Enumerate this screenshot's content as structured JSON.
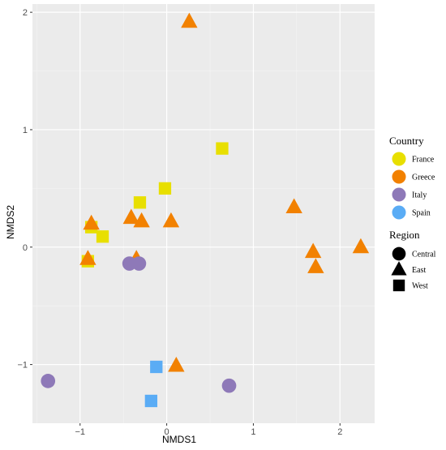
{
  "chart_data": {
    "type": "scatter",
    "xlabel": "NMDS1",
    "ylabel": "NMDS2",
    "xlim": [
      -1.55,
      2.4
    ],
    "ylim": [
      -1.5,
      2.07
    ],
    "x_ticks": [
      -1,
      0,
      1,
      2
    ],
    "y_ticks": [
      -1,
      0,
      1,
      2
    ],
    "x_tick_labels": [
      "−1",
      "0",
      "1",
      "2"
    ],
    "y_tick_labels": [
      "−1",
      "0",
      "1",
      "2"
    ],
    "grid": true,
    "legend_placement": "right",
    "color_legend": {
      "title": "Country",
      "items": [
        {
          "label": "France",
          "color": "#E8DF00"
        },
        {
          "label": "Greece",
          "color": "#F28100"
        },
        {
          "label": "Italy",
          "color": "#8E79B8"
        },
        {
          "label": "Spain",
          "color": "#5AACF5"
        }
      ]
    },
    "shape_legend": {
      "title": "Region",
      "items": [
        {
          "label": "Central",
          "shape": "circle"
        },
        {
          "label": "East",
          "shape": "triangle"
        },
        {
          "label": "West",
          "shape": "square"
        }
      ]
    },
    "points": [
      {
        "x": -0.87,
        "y": 0.17,
        "country": "France",
        "region": "West"
      },
      {
        "x": -0.74,
        "y": 0.09,
        "country": "France",
        "region": "West"
      },
      {
        "x": -0.91,
        "y": -0.12,
        "country": "France",
        "region": "West"
      },
      {
        "x": -0.31,
        "y": 0.38,
        "country": "France",
        "region": "West"
      },
      {
        "x": -0.02,
        "y": 0.5,
        "country": "France",
        "region": "West"
      },
      {
        "x": 0.64,
        "y": 0.84,
        "country": "France",
        "region": "West"
      },
      {
        "x": -0.87,
        "y": 0.2,
        "country": "Greece",
        "region": "East"
      },
      {
        "x": -0.91,
        "y": -0.1,
        "country": "Greece",
        "region": "East"
      },
      {
        "x": -0.41,
        "y": 0.25,
        "country": "Greece",
        "region": "East"
      },
      {
        "x": -0.29,
        "y": 0.22,
        "country": "Greece",
        "region": "East"
      },
      {
        "x": -0.35,
        "y": -0.1,
        "country": "Greece",
        "region": "East"
      },
      {
        "x": 0.05,
        "y": 0.22,
        "country": "Greece",
        "region": "East"
      },
      {
        "x": 0.26,
        "y": 1.92,
        "country": "Greece",
        "region": "East"
      },
      {
        "x": 0.11,
        "y": -1.01,
        "country": "Greece",
        "region": "East"
      },
      {
        "x": 1.47,
        "y": 0.34,
        "country": "Greece",
        "region": "East"
      },
      {
        "x": 1.69,
        "y": -0.04,
        "country": "Greece",
        "region": "East"
      },
      {
        "x": 1.72,
        "y": -0.17,
        "country": "Greece",
        "region": "East"
      },
      {
        "x": 2.24,
        "y": 0.0,
        "country": "Greece",
        "region": "East"
      },
      {
        "x": -0.43,
        "y": -0.14,
        "country": "Italy",
        "region": "Central"
      },
      {
        "x": -0.32,
        "y": -0.14,
        "country": "Italy",
        "region": "Central"
      },
      {
        "x": -1.37,
        "y": -1.14,
        "country": "Italy",
        "region": "Central"
      },
      {
        "x": 0.72,
        "y": -1.18,
        "country": "Italy",
        "region": "Central"
      },
      {
        "x": -0.12,
        "y": -1.02,
        "country": "Spain",
        "region": "West"
      },
      {
        "x": -0.18,
        "y": -1.31,
        "country": "Spain",
        "region": "West"
      }
    ]
  }
}
